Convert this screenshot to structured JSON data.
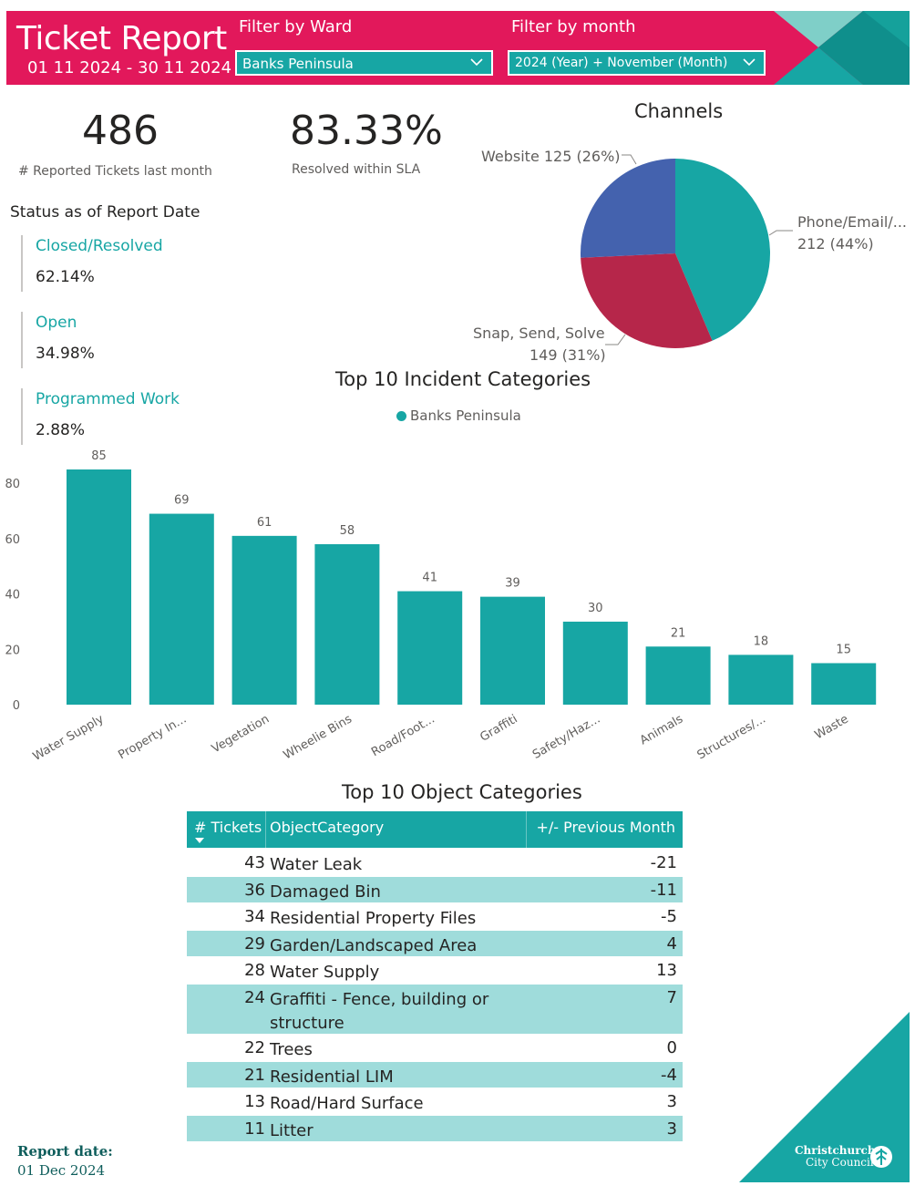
{
  "header": {
    "title": "Ticket Report",
    "date_range": "01 11 2024 - 30 11 2024",
    "ward_filter_label": "Filter by Ward",
    "ward_filter_value": "Banks Peninsula",
    "month_filter_label": "Filter by month",
    "month_filter_value": "2024 (Year) + November (Month)",
    "colors": {
      "brand_pink": "#e2185b",
      "teal": "#17a6a4",
      "dark_teal": "#0f8f8c"
    }
  },
  "kpis": {
    "tickets_value": "486",
    "tickets_label": "# Reported Tickets last month",
    "sla_value": "83.33%",
    "sla_label": "Resolved within SLA"
  },
  "status": {
    "title": "Status as of Report Date",
    "items": [
      {
        "label": "Closed/Resolved",
        "value": "62.14%"
      },
      {
        "label": "Open",
        "value": "34.98%"
      },
      {
        "label": "Programmed Work",
        "value": "2.88%"
      }
    ]
  },
  "channels": {
    "title": "Channels",
    "labels": [
      {
        "line1": "Website 125 (26%)",
        "line2": ""
      },
      {
        "line1": "Phone/Email/...",
        "line2": "212 (44%)"
      },
      {
        "line1": "Snap, Send, Solve",
        "line2": "149 (31%)"
      }
    ]
  },
  "incidents": {
    "title": "Top 10 Incident Categories",
    "legend": "Banks Peninsula"
  },
  "chart_data": [
    {
      "type": "pie",
      "title": "Channels",
      "categories": [
        "Phone/Email/...",
        "Snap, Send, Solve",
        "Website"
      ],
      "values": [
        212,
        149,
        125
      ],
      "percent_labels": [
        "44%",
        "31%",
        "26%"
      ],
      "colors": [
        "#17a6a4",
        "#b6264a",
        "#4462ae"
      ]
    },
    {
      "type": "bar",
      "title": "Top 10 Incident Categories",
      "categories": [
        "Water Supply",
        "Property In...",
        "Vegetation",
        "Wheelie Bins",
        "Road/Foot...",
        "Graffiti",
        "Safety/Haz...",
        "Animals",
        "Structures/...",
        "Waste"
      ],
      "series": [
        {
          "name": "Banks Peninsula",
          "values": [
            85,
            69,
            61,
            58,
            41,
            39,
            30,
            21,
            18,
            15
          ],
          "color": "#17a6a4"
        }
      ],
      "yticks": [
        0,
        20,
        40,
        60,
        80
      ],
      "ylim": [
        0,
        85
      ],
      "grid": false,
      "legend": "top-center"
    }
  ],
  "objects": {
    "title": "Top 10 Object Categories",
    "columns": {
      "tickets": "# Tickets",
      "category": "ObjectCategory",
      "change": "+/- Previous Month"
    },
    "sort_icon": "sort-descending-icon",
    "rows": [
      {
        "tickets": "43",
        "category": "Water Leak",
        "change": "-21"
      },
      {
        "tickets": "36",
        "category": "Damaged Bin",
        "change": "-11"
      },
      {
        "tickets": "34",
        "category": "Residential Property Files",
        "change": "-5"
      },
      {
        "tickets": "29",
        "category": "Garden/Landscaped Area",
        "change": "4"
      },
      {
        "tickets": "28",
        "category": "Water Supply",
        "change": "13"
      },
      {
        "tickets": "24",
        "category": "Graffiti - Fence, building or structure",
        "change": "7"
      },
      {
        "tickets": "22",
        "category": "Trees",
        "change": "0"
      },
      {
        "tickets": "21",
        "category": "Residential LIM",
        "change": "-4"
      },
      {
        "tickets": "13",
        "category": "Road/Hard Surface",
        "change": "3"
      },
      {
        "tickets": "11",
        "category": "Litter",
        "change": "3"
      }
    ]
  },
  "footer": {
    "report_date_label": "Report date:",
    "report_date_value": "01 Dec 2024",
    "logo_text_1": "Christchurch",
    "logo_text_2": "City Council"
  }
}
